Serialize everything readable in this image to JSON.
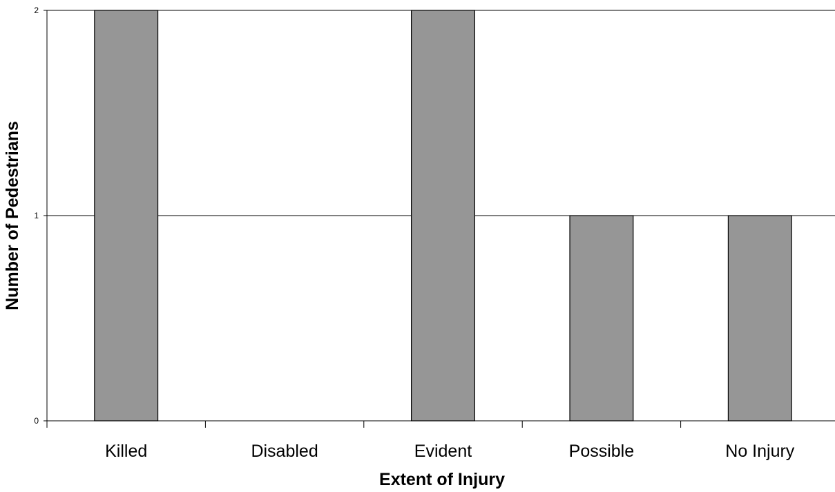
{
  "chart_data": {
    "type": "bar",
    "categories": [
      "Killed",
      "Disabled",
      "Evident",
      "Possible",
      "No Injury"
    ],
    "values": [
      2,
      0,
      2,
      1,
      1
    ],
    "xlabel": "Extent of Injury",
    "ylabel": "Number of Pedestrians",
    "ylim": [
      0,
      2
    ],
    "yticks": [
      0,
      1,
      2
    ],
    "grid": "horizontal",
    "legend": "none",
    "bar_color": "#969696",
    "bar_edge_color": "#000000",
    "grid_color": "#000000"
  }
}
